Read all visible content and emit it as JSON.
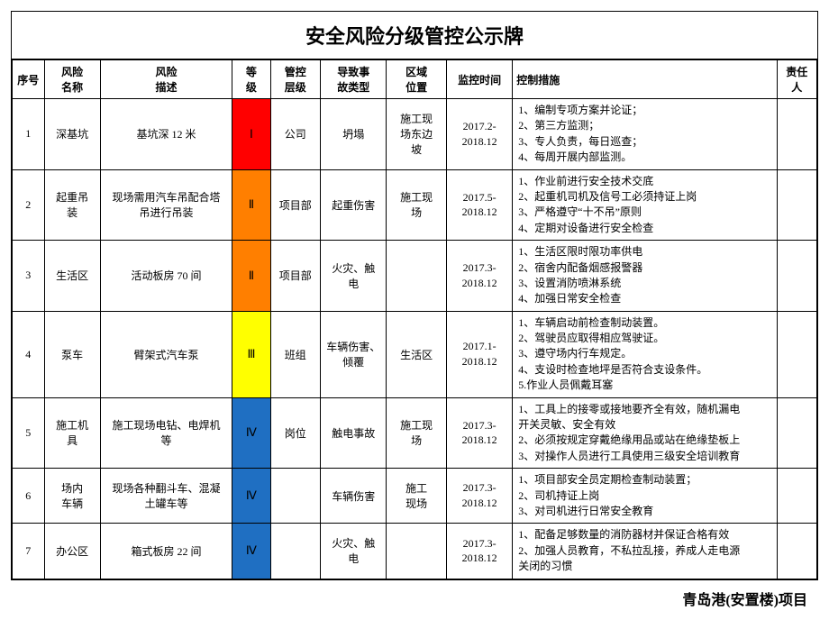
{
  "title": "安全风险分级管控公示牌",
  "footer": "青岛港(安置楼)项目",
  "level_colors": {
    "I": "#ff0000",
    "II": "#ff7f00",
    "III": "#ffff00",
    "IV": "#1f6fc2"
  },
  "headers": {
    "seq": "序号",
    "name": "风险\n名称",
    "desc": "风险\n描述",
    "level": "等\n级",
    "ctrl": "管控\n层级",
    "type": "导致事\n故类型",
    "loc": "区域\n位置",
    "time": "监控时间",
    "meas": "控制措施",
    "resp": "责任\n人"
  },
  "rows": [
    {
      "seq": "1",
      "name": "深基坑",
      "desc": "基坑深 12 米",
      "level": "I",
      "ctrl": "公司",
      "type": "坍塌",
      "loc": "施工现\n场东边\n坡",
      "time": "2017.2-\n2018.12",
      "measures": "1、编制专项方案并论证；\n2、第三方监测；\n3、专人负责，每日巡查；\n4、每周开展内部监测。",
      "resp": ""
    },
    {
      "seq": "2",
      "name": "起重吊\n装",
      "desc": "现场需用汽车吊配合塔\n吊进行吊装",
      "level": "II",
      "ctrl": "项目部",
      "type": "起重伤害",
      "loc": "施工现\n场",
      "time": "2017.5-\n2018.12",
      "measures": "1、作业前进行安全技术交底\n2、起重机司机及信号工必须持证上岗\n3、严格遵守“十不吊”原则\n4、定期对设备进行安全检查",
      "resp": ""
    },
    {
      "seq": "3",
      "name": "生活区",
      "desc": "活动板房 70 间",
      "level": "II",
      "ctrl": "项目部",
      "type": "火灾、触\n电",
      "loc": "",
      "time": "2017.3-\n2018.12",
      "measures": "1、生活区限时限功率供电\n2、宿舍内配备烟感报警器\n3、设置消防喷淋系统\n4、加强日常安全检查",
      "resp": ""
    },
    {
      "seq": "4",
      "name": "泵车",
      "desc": "臂架式汽车泵",
      "level": "III",
      "ctrl": "班组",
      "type": "车辆伤害、\n倾覆",
      "loc": "生活区",
      "time": "2017.1-\n2018.12",
      "measures": "1、车辆启动前检查制动装置。\n2、驾驶员应取得相应驾驶证。\n3、遵守场内行车规定。\n4、支设时检查地坪是否符合支设条件。\n5.作业人员佩戴耳塞",
      "resp": ""
    },
    {
      "seq": "5",
      "name": "施工机\n具",
      "desc": "施工现场电钻、电焊机\n等",
      "level": "IV",
      "ctrl": "岗位",
      "type": "触电事故",
      "loc": "施工现\n场",
      "time": "2017.3-\n2018.12",
      "measures": "1、工具上的接零或接地要齐全有效，随机漏电\n开关灵敏、安全有效\n2、必须按规定穿戴绝缘用品或站在绝缘垫板上\n3、对操作人员进行工具使用三级安全培训教育",
      "resp": ""
    },
    {
      "seq": "6",
      "name": "场内\n车辆",
      "desc": "现场各种翻斗车、混凝\n土罐车等",
      "level": "IV",
      "ctrl": "",
      "type": "车辆伤害",
      "loc": "施工\n现场",
      "time": "2017.3-\n2018.12",
      "measures": "1、项目部安全员定期检查制动装置；\n2、司机持证上岗\n3、对司机进行日常安全教育",
      "resp": ""
    },
    {
      "seq": "7",
      "name": "办公区",
      "desc": "箱式板房 22 间",
      "level": "IV",
      "ctrl": "",
      "type": "火灾、触\n电",
      "loc": "",
      "time": "2017.3-\n2018.12",
      "measures": "1、配备足够数量的消防器材并保证合格有效\n2、加强人员教育，不私拉乱接，养成人走电源\n关闭的习惯",
      "resp": ""
    }
  ]
}
